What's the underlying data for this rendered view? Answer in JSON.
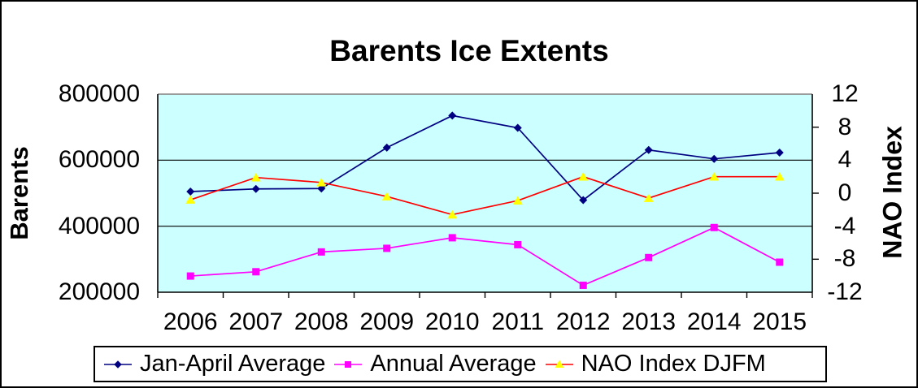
{
  "title": "Barents Ice Extents",
  "left_axis": {
    "title": "Barents",
    "tick_labels": [
      "800000",
      "600000",
      "400000",
      "200000"
    ],
    "tick_values": [
      800000,
      600000,
      400000,
      200000
    ]
  },
  "right_axis": {
    "title": "NAO Index",
    "tick_labels": [
      "12",
      "8",
      "4",
      "0",
      "-4",
      "-8",
      "-12"
    ],
    "tick_values": [
      12,
      8,
      4,
      0,
      -4,
      -8,
      -12
    ],
    "outer_tick_values": [
      8,
      0,
      -8
    ]
  },
  "legend": [
    {
      "label": "Jan-April Average",
      "marker": "diamond",
      "line_color": "#000080",
      "marker_color": "#000080"
    },
    {
      "label": "Annual Average",
      "marker": "square",
      "line_color": "#FF00FF",
      "marker_color": "#FF00FF"
    },
    {
      "label": "NAO Index DJFM",
      "marker": "triangle",
      "line_color": "#FF0000",
      "marker_color": "#FFFF00"
    }
  ],
  "chart_data": {
    "type": "line",
    "categories": [
      2006,
      2007,
      2008,
      2009,
      2010,
      2011,
      2012,
      2013,
      2014,
      2015
    ],
    "category_labels": [
      "2006",
      "2007",
      "2008",
      "2009",
      "2010",
      "2011",
      "2012",
      "2013",
      "2014",
      "2015"
    ],
    "series": [
      {
        "name": "Jan-April Average",
        "axis": "left",
        "marker": "diamond",
        "line_color": "#000080",
        "marker_color": "#000080",
        "values": [
          505000,
          513000,
          514000,
          638000,
          735000,
          698000,
          479000,
          631000,
          604000,
          623000
        ]
      },
      {
        "name": "Annual Average",
        "axis": "left",
        "marker": "square",
        "line_color": "#FF00FF",
        "marker_color": "#FF00FF",
        "values": [
          249000,
          262000,
          322000,
          333000,
          365000,
          344000,
          221000,
          305000,
          396000,
          291000
        ]
      },
      {
        "name": "NAO Index DJFM",
        "axis": "right",
        "marker": "triangle",
        "line_color": "#FF0000",
        "marker_color": "#FFFF00",
        "values": [
          -0.8,
          1.9,
          1.3,
          -0.4,
          -2.6,
          -0.9,
          2.0,
          -0.6,
          2.0,
          2.0
        ]
      }
    ],
    "title": "Barents Ice Extents",
    "xlabel": "",
    "ylabel_left": "Barents",
    "ylabel_right": "NAO Index",
    "left_ylim": [
      200000,
      800000
    ],
    "right_ylim": [
      -12,
      12
    ],
    "gridline_values_left": [
      600000,
      400000
    ],
    "grid_color": "#000000",
    "plot_bg": "#CCFFFF",
    "plot_top_border_color": "#909090",
    "legend_position": "bottom"
  }
}
